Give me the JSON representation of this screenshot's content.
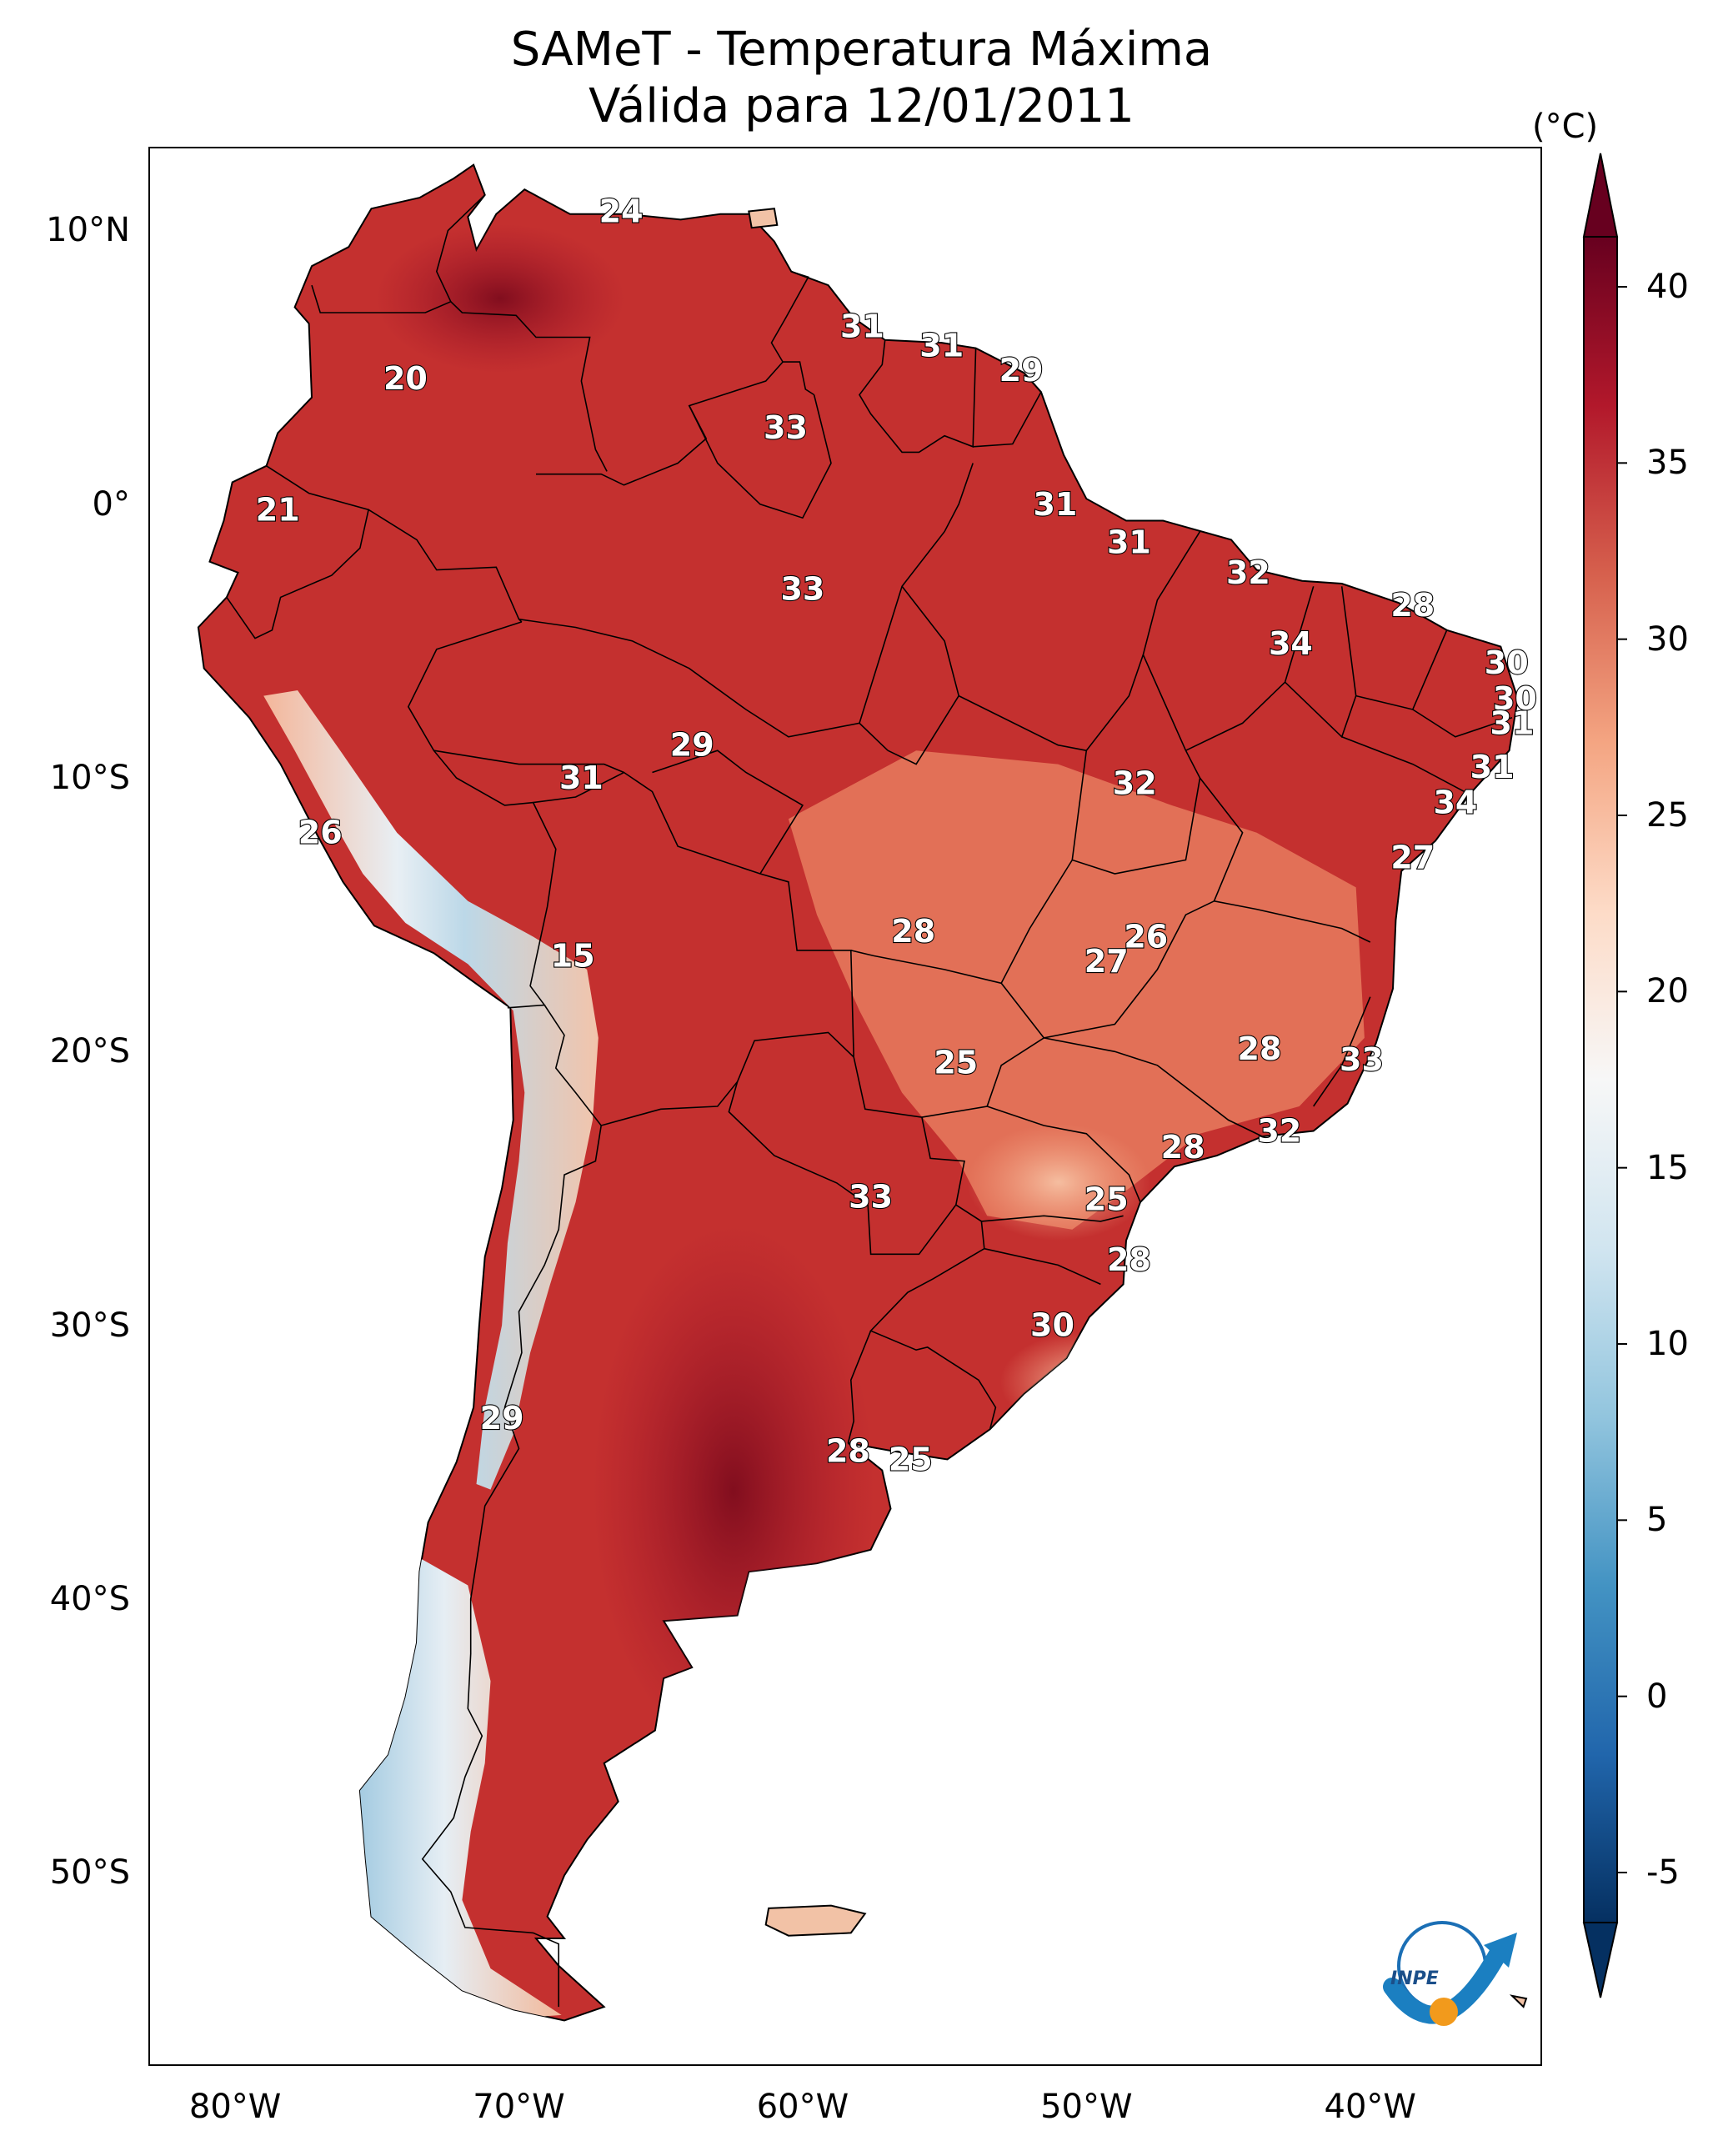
{
  "title": "SAMeT - Temperatura Máxima",
  "subtitle": "Válida para 12/01/2011",
  "colorbar": {
    "unit": "(°C)",
    "ticks": [
      "40",
      "35",
      "30",
      "25",
      "20",
      "15",
      "10",
      "5",
      "0",
      "-5"
    ],
    "range": [
      -5,
      40
    ],
    "colormap": [
      "#053061",
      "#2166ac",
      "#4393c3",
      "#92c5de",
      "#d1e5f0",
      "#f7f7f7",
      "#fddbc7",
      "#f4a582",
      "#d6604d",
      "#b2182b",
      "#67001f"
    ]
  },
  "axes": {
    "lat_labels": [
      "10°N",
      "0°",
      "10°S",
      "20°S",
      "30°S",
      "40°S",
      "50°S"
    ],
    "lon_labels": [
      "80°W",
      "70°W",
      "60°W",
      "50°W",
      "40°W"
    ]
  },
  "logo_text": "INPE",
  "stations": [
    {
      "value": "24",
      "lon": -66.4,
      "lat": 10.7
    },
    {
      "value": "20",
      "lon": -74.0,
      "lat": 4.6
    },
    {
      "value": "31",
      "lon": -57.9,
      "lat": 6.5
    },
    {
      "value": "31",
      "lon": -55.1,
      "lat": 5.8
    },
    {
      "value": "29",
      "lon": -52.3,
      "lat": 4.9
    },
    {
      "value": "33",
      "lon": -60.6,
      "lat": 2.8
    },
    {
      "value": "21",
      "lon": -78.5,
      "lat": -0.2
    },
    {
      "value": "31",
      "lon": -51.1,
      "lat": 0.0
    },
    {
      "value": "31",
      "lon": -48.5,
      "lat": -1.4
    },
    {
      "value": "32",
      "lon": -44.3,
      "lat": -2.5
    },
    {
      "value": "33",
      "lon": -60.0,
      "lat": -3.1
    },
    {
      "value": "28",
      "lon": -38.5,
      "lat": -3.7
    },
    {
      "value": "34",
      "lon": -42.8,
      "lat": -5.1
    },
    {
      "value": "30",
      "lon": -35.2,
      "lat": -5.8
    },
    {
      "value": "30",
      "lon": -34.9,
      "lat": -7.1
    },
    {
      "value": "31",
      "lon": -35.0,
      "lat": -8.0
    },
    {
      "value": "29",
      "lon": -63.9,
      "lat": -8.8
    },
    {
      "value": "31",
      "lon": -67.8,
      "lat": -10.0
    },
    {
      "value": "32",
      "lon": -48.3,
      "lat": -10.2
    },
    {
      "value": "31",
      "lon": -35.7,
      "lat": -9.6
    },
    {
      "value": "34",
      "lon": -37.0,
      "lat": -10.9
    },
    {
      "value": "26",
      "lon": -77.0,
      "lat": -12.0
    },
    {
      "value": "27",
      "lon": -38.5,
      "lat": -12.9
    },
    {
      "value": "28",
      "lon": -56.1,
      "lat": -15.6
    },
    {
      "value": "26",
      "lon": -47.9,
      "lat": -15.8
    },
    {
      "value": "27",
      "lon": -49.3,
      "lat": -16.7
    },
    {
      "value": "15",
      "lon": -68.1,
      "lat": -16.5
    },
    {
      "value": "25",
      "lon": -54.6,
      "lat": -20.4
    },
    {
      "value": "28",
      "lon": -43.9,
      "lat": -19.9
    },
    {
      "value": "33",
      "lon": -40.3,
      "lat": -20.3
    },
    {
      "value": "32",
      "lon": -43.2,
      "lat": -22.9
    },
    {
      "value": "28",
      "lon": -46.6,
      "lat": -23.5
    },
    {
      "value": "33",
      "lon": -57.6,
      "lat": -25.3
    },
    {
      "value": "25",
      "lon": -49.3,
      "lat": -25.4
    },
    {
      "value": "28",
      "lon": -48.5,
      "lat": -27.6
    },
    {
      "value": "30",
      "lon": -51.2,
      "lat": -30.0
    },
    {
      "value": "29",
      "lon": -70.6,
      "lat": -33.4
    },
    {
      "value": "28",
      "lon": -58.4,
      "lat": -34.6
    },
    {
      "value": "25",
      "lon": -56.2,
      "lat": -34.9
    }
  ]
}
